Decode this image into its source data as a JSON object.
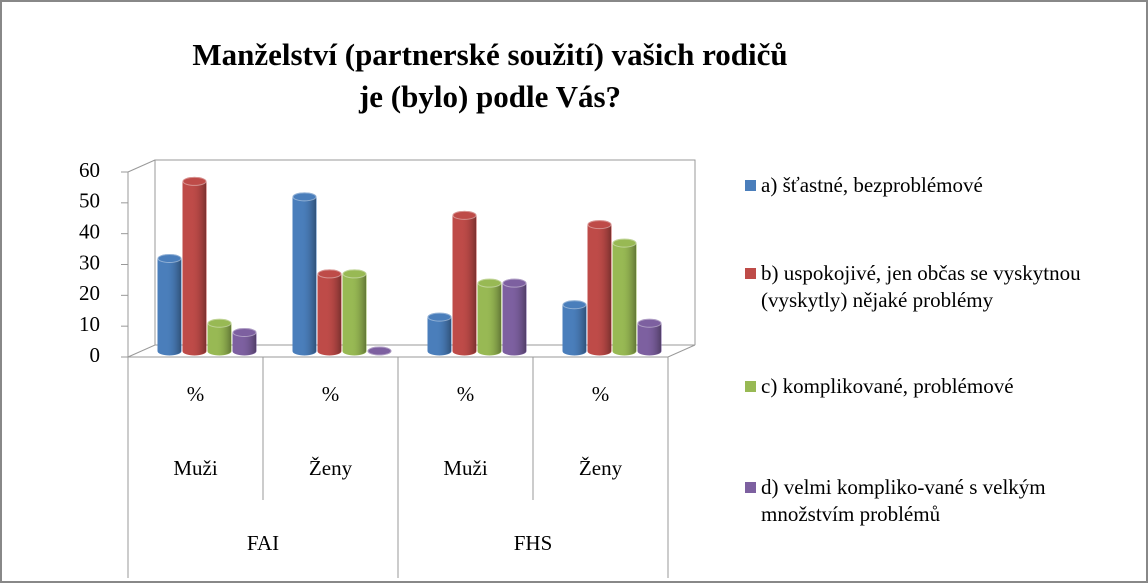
{
  "chart_data": {
    "type": "bar3d",
    "title": "Manželství (partnerské soužití) vašich rodičů je (bylo) podle Vás?",
    "categories": [
      "%",
      "%",
      "%",
      "%"
    ],
    "subcategories": [
      "Muži",
      "Ženy",
      "Muži",
      "Ženy"
    ],
    "groups": [
      "FAI",
      "FHS"
    ],
    "series": [
      {
        "name": "a) šťastné, bezproblémové",
        "color": "#4a7ebb",
        "values": [
          30,
          50,
          11,
          15
        ]
      },
      {
        "name": "b) uspokojivé, jen občas se vyskytnou (vyskytly) nějaké problémy",
        "color": "#be4b48",
        "values": [
          55,
          25,
          44,
          41
        ]
      },
      {
        "name": "c) komplikované, problémové",
        "color": "#98b954",
        "values": [
          9,
          25,
          22,
          35
        ]
      },
      {
        "name": "d) velmi kompliko-vané s velkým množstvím problémů",
        "color": "#7d60a0",
        "values": [
          6,
          0,
          22,
          9
        ]
      }
    ],
    "ylim": [
      0,
      60
    ],
    "yticks": [
      0,
      10,
      20,
      30,
      40,
      50,
      60
    ],
    "grid": false,
    "legend": "right"
  }
}
